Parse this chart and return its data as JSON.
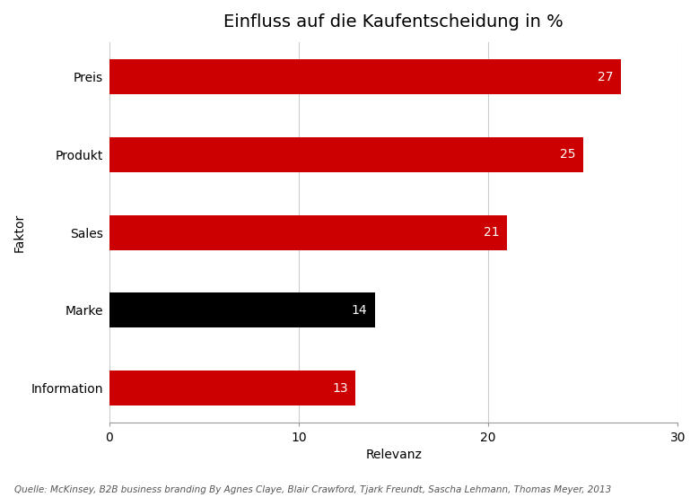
{
  "title": "Einfluss auf die Kaufentscheidung in %",
  "categories": [
    "Preis",
    "Produkt",
    "Sales",
    "Marke",
    "Information"
  ],
  "values": [
    27,
    25,
    21,
    14,
    13
  ],
  "bar_colors": [
    "#cc0000",
    "#cc0000",
    "#cc0000",
    "#000000",
    "#cc0000"
  ],
  "xlabel": "Relevanz",
  "ylabel": "Faktor",
  "xlim": [
    0,
    30
  ],
  "xticks": [
    0,
    10,
    20,
    30
  ],
  "footnote": "Quelle: McKinsey, B2B business branding By Agnes Claye, Blair Crawford, Tjark Freundt, Sascha Lehmann, Thomas Meyer, 2013",
  "title_fontsize": 14,
  "label_fontsize": 10,
  "tick_fontsize": 10,
  "value_fontsize": 10,
  "footnote_fontsize": 7.5,
  "background_color": "#ffffff",
  "grid_color": "#cccccc",
  "bar_height": 0.45
}
